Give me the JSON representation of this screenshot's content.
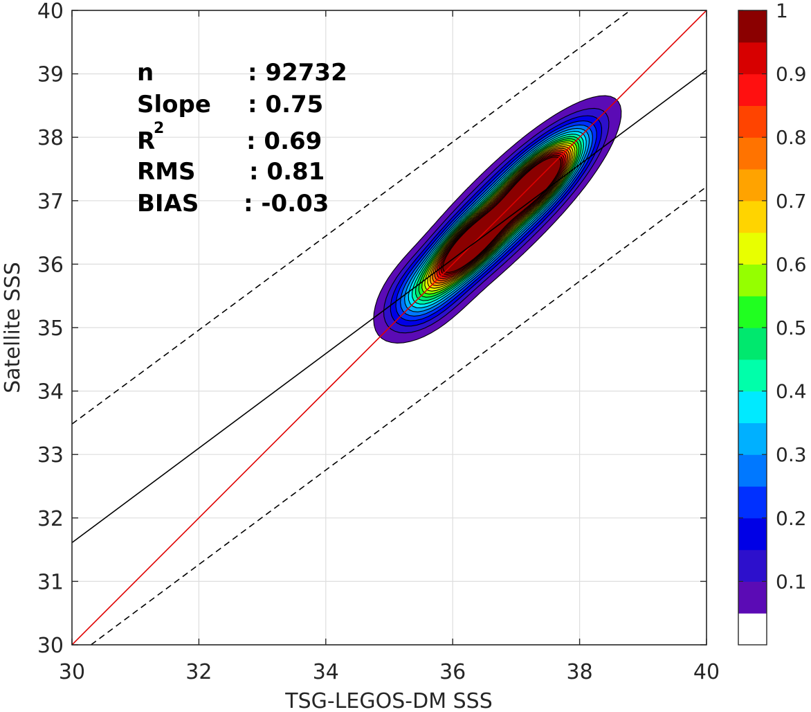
{
  "chart_data": {
    "type": "contour",
    "xlabel": "TSG-LEGOS-DM SSS",
    "ylabel": "Satellite SSS",
    "xlim": [
      30,
      40
    ],
    "ylim": [
      30,
      40
    ],
    "xticks": [
      "30",
      "32",
      "34",
      "36",
      "38",
      "40"
    ],
    "yticks": [
      "30",
      "31",
      "32",
      "33",
      "34",
      "35",
      "36",
      "37",
      "38",
      "39",
      "40"
    ],
    "grid": true,
    "stats": {
      "n_label": "n",
      "n_value": ": 92732",
      "slope_label": "Slope",
      "slope_value": ": 0.75",
      "r2_label": "R",
      "r2_sup": "2",
      "r2_value": ": 0.69",
      "rms_label": "RMS",
      "rms_value": ": 0.81",
      "bias_label": "BIAS",
      "bias_value": ": -0.03"
    },
    "lines": [
      {
        "style": "solid",
        "color": "#e00000",
        "x": [
          30,
          40
        ],
        "y": [
          30,
          40
        ]
      },
      {
        "style": "solid",
        "color": "#000000",
        "x": [
          30,
          40
        ],
        "y": [
          31.61,
          39.06
        ]
      },
      {
        "style": "dashed",
        "color": "#000000",
        "x": [
          30,
          38.8
        ],
        "y": [
          33.48,
          40
        ]
      },
      {
        "style": "dashed",
        "color": "#000000",
        "x": [
          30.3,
          40
        ],
        "y": [
          30,
          37.22
        ]
      }
    ],
    "density": {
      "peaks": [
        {
          "x": 36.25,
          "y": 36.28,
          "weight": 1.0
        },
        {
          "x": 37.35,
          "y": 37.33,
          "weight": 0.97
        }
      ],
      "levels": [
        0.05,
        0.1,
        0.15,
        0.2,
        0.25,
        0.3,
        0.35,
        0.4,
        0.45,
        0.5,
        0.55,
        0.6,
        0.65,
        0.7,
        0.75,
        0.8,
        0.85,
        0.9,
        0.95,
        1.0
      ]
    },
    "colorbar": {
      "range": [
        0,
        1
      ],
      "ticks": [
        "0.1",
        "0.2",
        "0.3",
        "0.4",
        "0.5",
        "0.6",
        "0.7",
        "0.8",
        "0.9",
        "1"
      ],
      "colors": [
        "#ffffff",
        "#5b0bb5",
        "#2d10cc",
        "#0000e6",
        "#0030ff",
        "#0078ff",
        "#00b0ff",
        "#00eaff",
        "#00ffaa",
        "#00e86e",
        "#20ff20",
        "#95ff00",
        "#e8ff00",
        "#ffd400",
        "#ffa300",
        "#ff7300",
        "#ff4400",
        "#ff1010",
        "#d70000",
        "#8b0000"
      ]
    }
  }
}
